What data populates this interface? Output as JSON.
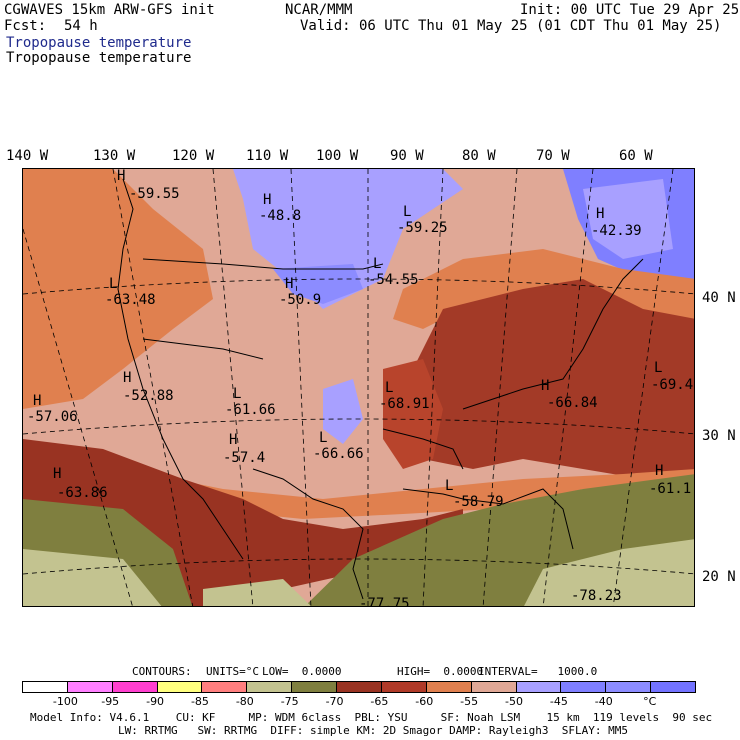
{
  "header": {
    "model": "CGWAVES 15km ARW-GFS init",
    "fcst_label": "Fcst:",
    "fcst_value": "54 h",
    "center": "NCAR/MMM",
    "init": "Init: 00 UTC Tue 29 Apr 25",
    "valid": "Valid: 06 UTC Thu 01 May 25 (01 CDT Thu 01 May 25)",
    "field_title_1": "Tropopause temperature",
    "field_title_2": "Tropopause temperature"
  },
  "longitude_labels": [
    "140 W",
    "130 W",
    "120 W",
    "110 W",
    "100 W",
    "90 W",
    "80 W",
    "70 W",
    "60 W"
  ],
  "latitude_labels": [
    "40 N",
    "30 N",
    "20 N"
  ],
  "map_labels": [
    {
      "type": "H",
      "value": "-59.55"
    },
    {
      "type": "H",
      "value": "-48.8"
    },
    {
      "type": "L",
      "value": "-59.25"
    },
    {
      "type": "H",
      "value": "-42.39"
    },
    {
      "type": "L",
      "value": "-54.55"
    },
    {
      "type": "L",
      "value": "-63.48"
    },
    {
      "type": "H",
      "value": "-50.9"
    },
    {
      "type": "H",
      "value": "-52.88"
    },
    {
      "type": "H",
      "value": "-57.06"
    },
    {
      "type": "L",
      "value": "-61.66"
    },
    {
      "type": "L",
      "value": "-68.91"
    },
    {
      "type": "H",
      "value": "-66.84"
    },
    {
      "type": "L",
      "value": "-69.4"
    },
    {
      "type": "H",
      "value": "-57.4"
    },
    {
      "type": "L",
      "value": "-66.66"
    },
    {
      "type": "H",
      "value": "-63.86"
    },
    {
      "type": "L",
      "value": "-58.79"
    },
    {
      "type": "H",
      "value": "-61.1"
    },
    {
      "type": "",
      "value": "-77.75"
    },
    {
      "type": "",
      "value": "-78.23"
    }
  ],
  "contour_info": {
    "contours": "CONTOURS:",
    "units": "UNITS=°C",
    "low": "LOW=  0.0000",
    "high": "HIGH=  0.0000",
    "interval": "INTERVAL=   1000.0"
  },
  "colorbar": {
    "colors": [
      "#ffffff",
      "#ff7fff",
      "#ff3fcf",
      "#ffff7f",
      "#ff7f7f",
      "#c3c390",
      "#7f7f3f",
      "#993322",
      "#b03a28",
      "#e0804f",
      "#e0a896",
      "#a8a0ff",
      "#7f7fff",
      "#8c8cff",
      "#7373ff"
    ],
    "ticks": [
      "-100",
      "-95",
      "-90",
      "-85",
      "-80",
      "-75",
      "-70",
      "-65",
      "-60",
      "-55",
      "-50",
      "-45",
      "-40",
      "°C"
    ]
  },
  "footer": {
    "line1": "Model Info: V4.6.1    CU: KF     MP: WDM 6class  PBL: YSU     SF: Noah LSM    15 km  119 levels  90 sec",
    "line2": "LW: RRTMG   SW: RRTMG  DIFF: simple KM: 2D Smagor DAMP: Rayleigh3  SFLAY: MM5"
  }
}
